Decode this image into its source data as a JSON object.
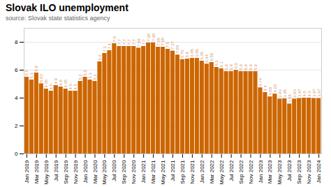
{
  "chart_data": {
    "type": "bar",
    "title": "Slovak ILO unemployment",
    "subtitle": "source: Slovak state statistics agency",
    "color": "#CC6600",
    "categories": [
      "Jan 2019",
      null,
      "Mar 2019",
      null,
      "May 2019",
      null,
      "Jul 2019",
      null,
      "Sep 2019",
      null,
      "Nov 2019",
      null,
      "Jan 2020",
      null,
      "Mar 2020",
      null,
      "May 2020",
      null,
      "Jul 2020",
      null,
      "Sep 2020",
      null,
      "Nov 2020",
      null,
      "Jan 2021",
      null,
      "Mar 2021",
      null,
      "May 2021",
      null,
      "Jul 2021",
      null,
      "Sep 2021",
      null,
      "Nov 2021",
      null,
      "Jan 2022",
      null,
      "Mar 2022",
      null,
      "May 2022",
      null,
      "Jul 2022",
      null,
      "Sep 2022",
      null,
      "Nov 2022",
      null,
      "Jan 2023",
      null,
      "Mar 2023",
      null,
      "May 2023",
      null,
      "Jul 2023",
      null,
      "Sep 2023",
      null,
      "Nov 2023",
      null,
      "Jan 2024"
    ],
    "values": [
      5.5,
      5.3,
      5.8,
      5.03,
      4.65,
      4.5,
      4.9,
      4.8,
      4.65,
      4.5,
      4.5,
      5.2,
      5.5,
      5.3,
      5.2,
      6.6,
      7.2,
      7.4,
      7.9,
      7.7,
      7.7,
      7.7,
      7.7,
      7.58,
      7.7,
      7.95,
      7.96,
      7.65,
      7.65,
      7.5,
      7.37,
      7.09,
      6.76,
      6.8,
      6.85,
      6.85,
      6.65,
      6.44,
      6.55,
      6.2,
      6.1,
      5.9,
      5.9,
      6.0,
      5.9,
      5.9,
      5.9,
      5.9,
      4.74,
      4.4,
      4.09,
      4.29,
      3.93,
      3.95,
      3.58,
      3.93,
      3.97,
      4.0,
      4.0,
      3.97,
      3.97
    ],
    "value_labels": [
      "5.5",
      "5.3",
      "5.8",
      "5.03",
      "4.65",
      "4.5",
      "4.9",
      "4.8",
      "4.65",
      "4.5",
      "4.5",
      "5.2",
      "5.5",
      "5.3",
      "5.2",
      "6.6",
      "7.2",
      "7.4",
      "7.9",
      "7.7",
      "7.7",
      "7.7",
      "7.7",
      "7.58",
      "7.7",
      "7.95",
      "7.96",
      "7.65",
      "7.65",
      "7.5",
      "7.37",
      "7.09",
      "6.76",
      "6.8",
      "6.85",
      "6.85",
      "6.65",
      "6.44",
      "6.55",
      "6.2",
      "6.1",
      "5.9",
      "5.9",
      "6.0",
      "5.9",
      "5.9",
      "5.9",
      "5.9",
      "4.74",
      "4.4",
      "4.09",
      "4.29",
      "3.93",
      "3.95",
      "3.58",
      "3.93",
      "3.97",
      "4.0",
      "4.0",
      "3.97",
      "3.97"
    ],
    "data_labels": true,
    "ylim": [
      0,
      9
    ],
    "yticks": [
      0,
      2,
      4,
      6,
      8
    ],
    "grid": true
  }
}
